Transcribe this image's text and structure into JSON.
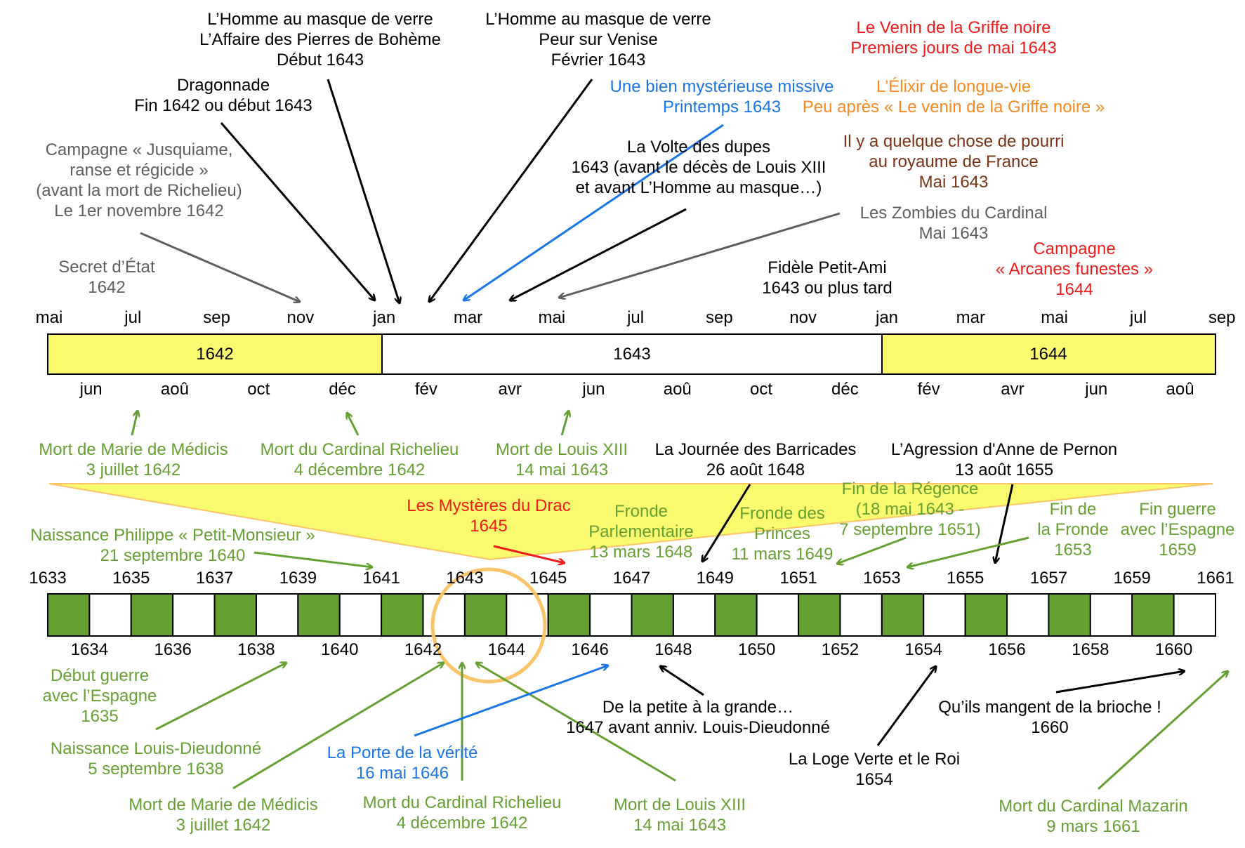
{
  "colors": {
    "black": "#000000",
    "grey": "#5f5f5f",
    "blue": "#1a75e8",
    "red": "#f01a1a",
    "orange": "#f7891f",
    "brown": "#7a3414",
    "green": "#65a033",
    "yellow": "#fafa6e",
    "dark_green": "#65a032",
    "circle": "#f9c46a"
  },
  "top_timeline": {
    "months_top": [
      "mai",
      "jul",
      "sep",
      "nov",
      "jan",
      "mar",
      "mai",
      "jul",
      "sep",
      "nov",
      "jan",
      "mar",
      "mai",
      "jul",
      "sep"
    ],
    "months_bottom": [
      "jun",
      "aoû",
      "oct",
      "déc",
      "fév",
      "avr",
      "jun",
      "aoû",
      "oct",
      "déc",
      "fév",
      "avr",
      "jun",
      "aoû"
    ],
    "years": [
      "1642",
      "1643",
      "1644"
    ]
  },
  "bottom_timeline": {
    "years_top": [
      "1633",
      "1635",
      "1637",
      "1639",
      "1641",
      "1643",
      "1645",
      "1647",
      "1649",
      "1651",
      "1653",
      "1655",
      "1657",
      "1659",
      "1661"
    ],
    "years_bottom": [
      "1634",
      "1636",
      "1638",
      "1640",
      "1642",
      "1644",
      "1646",
      "1648",
      "1650",
      "1652",
      "1654",
      "1656",
      "1658",
      "1660"
    ]
  },
  "top_labels": [
    {
      "id": "secret-etat",
      "color": "grey",
      "lines": [
        "Secret d’État",
        "1642"
      ]
    },
    {
      "id": "campagne-jusquiame",
      "color": "grey",
      "lines": [
        "Campagne « Jusquiame,",
        "ranse et régicide »",
        "(avant la mort de Richelieu)",
        "Le 1er novembre 1642"
      ]
    },
    {
      "id": "dragonnade",
      "color": "black",
      "lines": [
        "Dragonnade",
        "Fin 1642 ou début 1643"
      ]
    },
    {
      "id": "homme-masque-bohème",
      "color": "black",
      "lines": [
        "L’Homme au masque de verre",
        "L’Affaire des Pierres de Bohème",
        "Début 1643"
      ]
    },
    {
      "id": "homme-masque-venise",
      "color": "black",
      "lines": [
        "L’Homme au masque de verre",
        "Peur sur Venise",
        "Février 1643"
      ]
    },
    {
      "id": "missive",
      "color": "blue",
      "lines": [
        "Une bien mystérieuse missive",
        "Printemps 1643"
      ]
    },
    {
      "id": "volte-dupes",
      "color": "black",
      "lines": [
        "La Volte des dupes",
        "1643 (avant le décès de Louis XIII",
        "et avant L’Homme au masque…)"
      ]
    },
    {
      "id": "venin",
      "color": "red",
      "lines": [
        "Le Venin de la Griffe noire",
        "Premiers jours de mai 1643"
      ]
    },
    {
      "id": "elixir",
      "color": "orange",
      "lines": [
        "L’Élixir de longue-vie",
        "Peu après « Le venin de la Griffe noire »"
      ]
    },
    {
      "id": "pourri",
      "color": "brown",
      "lines": [
        "Il y a quelque chose de pourri",
        "au royaume de France",
        "Mai 1643"
      ]
    },
    {
      "id": "zombies",
      "color": "grey",
      "lines": [
        "Les Zombies du Cardinal",
        "Mai 1643"
      ]
    },
    {
      "id": "fidele",
      "color": "black",
      "lines": [
        "Fidèle Petit-Ami",
        "1643 ou plus tard"
      ]
    },
    {
      "id": "arcanes",
      "color": "red",
      "lines": [
        "Campagne",
        "« Arcanes funestes »",
        "1644"
      ]
    }
  ],
  "middle_labels": [
    {
      "id": "mort-medicis-top",
      "color": "green",
      "lines": [
        "Mort de Marie de Médicis",
        "3 juillet 1642"
      ]
    },
    {
      "id": "mort-richelieu-top",
      "color": "green",
      "lines": [
        "Mort du Cardinal Richelieu",
        "4 décembre 1642"
      ]
    },
    {
      "id": "mort-louis-top",
      "color": "green",
      "lines": [
        "Mort de Louis XIII",
        "14 mai 1643"
      ]
    },
    {
      "id": "barricades",
      "color": "black",
      "lines": [
        "La Journée des Barricades",
        "26 août 1648"
      ]
    },
    {
      "id": "agression",
      "color": "black",
      "lines": [
        "L’Agression d'Anne de Pernon",
        "13 août 1655"
      ]
    },
    {
      "id": "naissance-philippe",
      "color": "green",
      "lines": [
        "Naissance Philippe « Petit-Monsieur »",
        "21 septembre 1640"
      ]
    },
    {
      "id": "mysteres-drac",
      "color": "red",
      "lines": [
        "Les Mystères du Drac",
        "1645"
      ]
    },
    {
      "id": "fronde-parlementaire",
      "color": "green",
      "lines": [
        "Fronde",
        "Parlementaire",
        "13 mars 1648"
      ]
    },
    {
      "id": "fronde-princes",
      "color": "green",
      "lines": [
        "Fronde des",
        "Princes",
        "11 mars 1649"
      ]
    },
    {
      "id": "fin-regence",
      "color": "green",
      "lines": [
        "Fin de la Régence",
        "(18 mai 1643 -",
        "7 septembre 1651)"
      ]
    },
    {
      "id": "fin-fronde",
      "color": "green",
      "lines": [
        "Fin de",
        "la Fronde",
        "1653"
      ]
    },
    {
      "id": "fin-guerre",
      "color": "green",
      "lines": [
        "Fin guerre",
        "avec l’Espagne",
        "1659"
      ]
    }
  ],
  "bottom_labels": [
    {
      "id": "debut-guerre",
      "color": "green",
      "lines": [
        "Début guerre",
        "avec l’Espagne",
        "1635"
      ]
    },
    {
      "id": "naissance-louis",
      "color": "green",
      "lines": [
        "Naissance Louis-Dieudonné",
        "5 septembre 1638"
      ]
    },
    {
      "id": "mort-medicis-bottom",
      "color": "green",
      "lines": [
        "Mort de Marie de Médicis",
        "3 juillet 1642"
      ]
    },
    {
      "id": "porte-verite",
      "color": "blue",
      "lines": [
        "La Porte de la vérité",
        "16 mai 1646"
      ]
    },
    {
      "id": "mort-richelieu-bottom",
      "color": "green",
      "lines": [
        "Mort du Cardinal Richelieu",
        "4 décembre 1642"
      ]
    },
    {
      "id": "mort-louis-bottom",
      "color": "green",
      "lines": [
        "Mort de Louis XIII",
        "14 mai 1643"
      ]
    },
    {
      "id": "petite-grande",
      "color": "black",
      "lines": [
        "De la petite à la grande…",
        "1647 avant anniv. Louis-Dieudonné"
      ]
    },
    {
      "id": "loge-verte",
      "color": "black",
      "lines": [
        "La Loge Verte et le Roi",
        "1654"
      ]
    },
    {
      "id": "brioche",
      "color": "black",
      "lines": [
        "Qu’ils mangent de la brioche !",
        "1660"
      ]
    },
    {
      "id": "mort-mazarin",
      "color": "green",
      "lines": [
        "Mort du Cardinal Mazarin",
        "9 mars 1661"
      ]
    }
  ]
}
